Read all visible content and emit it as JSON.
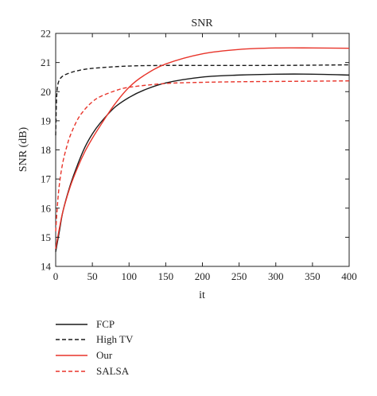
{
  "chart_data": {
    "type": "line",
    "title": "SNR",
    "xlabel": "it",
    "ylabel": "SNR (dB)",
    "xlim": [
      0,
      400
    ],
    "ylim": [
      14,
      22
    ],
    "xticks": [
      0,
      50,
      100,
      150,
      200,
      250,
      300,
      350,
      400
    ],
    "yticks": [
      14,
      15,
      16,
      17,
      18,
      19,
      20,
      21,
      22
    ],
    "grid": false,
    "legend_position": "below-left",
    "series": [
      {
        "name": "FCP",
        "color": "#1a1a1a",
        "dash": "solid",
        "x": [
          0,
          5,
          10,
          20,
          30,
          40,
          50,
          60,
          80,
          100,
          120,
          150,
          200,
          250,
          300,
          350,
          400
        ],
        "y": [
          14.5,
          15.2,
          15.9,
          16.8,
          17.5,
          18.1,
          18.55,
          18.9,
          19.45,
          19.8,
          20.05,
          20.3,
          20.5,
          20.57,
          20.6,
          20.6,
          20.57
        ]
      },
      {
        "name": "High TV",
        "color": "#1a1a1a",
        "dash": "dashed",
        "x": [
          0,
          1,
          2,
          3,
          5,
          8,
          12,
          20,
          30,
          50,
          100,
          150,
          200,
          300,
          400
        ],
        "y": [
          18.5,
          19.6,
          20.05,
          20.25,
          20.4,
          20.5,
          20.57,
          20.65,
          20.72,
          20.8,
          20.88,
          20.9,
          20.9,
          20.9,
          20.92
        ]
      },
      {
        "name": "Our",
        "color": "#e8342a",
        "dash": "solid",
        "x": [
          0,
          5,
          10,
          20,
          30,
          40,
          50,
          60,
          80,
          100,
          120,
          150,
          200,
          250,
          300,
          350,
          400
        ],
        "y": [
          14.6,
          15.3,
          15.9,
          16.75,
          17.4,
          17.95,
          18.4,
          18.8,
          19.55,
          20.15,
          20.55,
          20.95,
          21.3,
          21.45,
          21.5,
          21.5,
          21.49
        ]
      },
      {
        "name": "SALSA",
        "color": "#e8342a",
        "dash": "dashed",
        "x": [
          0,
          3,
          6,
          10,
          15,
          20,
          30,
          40,
          50,
          60,
          80,
          100,
          150,
          200,
          250,
          300,
          400
        ],
        "y": [
          15.2,
          16.3,
          17.0,
          17.6,
          18.1,
          18.5,
          19.05,
          19.4,
          19.65,
          19.82,
          20.02,
          20.15,
          20.28,
          20.32,
          20.34,
          20.35,
          20.37
        ]
      }
    ]
  }
}
